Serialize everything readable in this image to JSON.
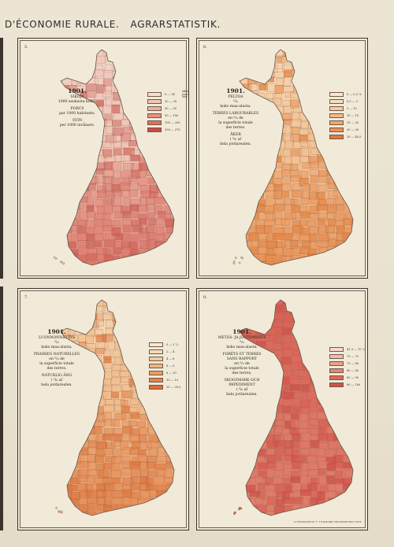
{
  "header": {
    "title_left": "D'ÉCONOMIE RURALE.",
    "title_right": "AGRARSTATISTIK."
  },
  "panels": [
    {
      "number": "5.",
      "caption": [
        "SIKOJA",
        "1000 asukasta kohti.",
        "",
        "PORCS",
        "par 1000 habitants.",
        "",
        "SVIN",
        "per 1000 invånare."
      ],
      "year": "1901.",
      "legend_unit": [
        "äiken",
        "porcs",
        "svin"
      ],
      "legend": [
        {
          "label": "0 — 14",
          "color": "#f6ddd0"
        },
        {
          "label": "20 — 30",
          "color": "#f2c6b6"
        },
        {
          "label": "30 — 50",
          "color": "#eeb09f"
        },
        {
          "label": "50 — 100",
          "color": "#e7917f"
        },
        {
          "label": "100 — 200",
          "color": "#df6f61"
        },
        {
          "label": "200 — 270",
          "color": "#c94b47"
        }
      ],
      "map": {
        "north": "#f3dcd0",
        "mid": "#efc2b3",
        "south": "#e07d70",
        "accent": "#cf5d55"
      }
    },
    {
      "number": "6.",
      "caption": [
        "PELTOA",
        "⁰/₀",
        "koko maa-alasta.",
        "",
        "TERRES LABOURABLES",
        "en ⁰/₀ de",
        "la superficie totale",
        "des terres.",
        "",
        "ÅKER",
        "i ⁰/₀ af",
        "hela jordarealen."
      ],
      "year": "1901.",
      "legend_unit": [],
      "legend": [
        {
          "label": "0 — 0,5 ⁰/₀",
          "color": "#fbe6cc"
        },
        {
          "label": "0,5 — 2",
          "color": "#f9dcb9"
        },
        {
          "label": "2 — 10",
          "color": "#f6cca0"
        },
        {
          "label": "10 — 15",
          "color": "#f3bb85"
        },
        {
          "label": "15 — 20",
          "color": "#f0a66c"
        },
        {
          "label": "20 — 30",
          "color": "#ec9055"
        },
        {
          "label": "30 — 40,5",
          "color": "#e5773e"
        }
      ],
      "map": {
        "north": "#f9e2c6",
        "mid": "#f3c192",
        "south": "#eb9a62",
        "accent": "#e2813f"
      }
    },
    {
      "number": "7.",
      "caption": [
        "LUONNONNIITTYÄ",
        "⁰/₀",
        "koko maa-alasta.",
        "",
        "PRAIRIES NATURELLES",
        "en ⁰/₀ de",
        "la superficie totale",
        "des terres.",
        "",
        "NATURLIG ÄNG",
        "i ⁰/₀ af",
        "hela jordarealen."
      ],
      "year": "1901.",
      "legend_unit": [],
      "legend": [
        {
          "label": "0 — 2 ⁰/₀",
          "color": "#fbe8cf"
        },
        {
          "label": "2 — 4",
          "color": "#f8dab5"
        },
        {
          "label": "4 — 6",
          "color": "#f5c99b"
        },
        {
          "label": "6 — 8",
          "color": "#f1b47f"
        },
        {
          "label": "8 — 10",
          "color": "#ec9c62"
        },
        {
          "label": "10 — 15",
          "color": "#e6844a"
        },
        {
          "label": "15 — 20,5",
          "color": "#dd6c36"
        }
      ],
      "map": {
        "north": "#f7dfc2",
        "mid": "#f1bc8b",
        "south": "#e8905a",
        "accent": "#dc7238"
      }
    },
    {
      "number": "8.",
      "caption": [
        "METSÄ- JA JOUTOMAATA",
        "⁰/₀",
        "koko maa-alasta.",
        "",
        "FORÊTS ET TERRES",
        "SANS RAPPORT",
        "en ⁰/₀ de",
        "la superficie totale",
        "des terres.",
        "",
        "SKOGSMARK OCH",
        "IMPEDIMENT",
        "i ⁰/₀ af",
        "hela jordarealen."
      ],
      "year": "1901.",
      "legend_unit": [],
      "legend": [
        {
          "label": "41,3 — 70 ⁰/₀",
          "color": "#f8d8cb"
        },
        {
          "label": "70 — 75",
          "color": "#f2bcaa"
        },
        {
          "label": "75 — 80",
          "color": "#eca08e"
        },
        {
          "label": "80 — 85",
          "color": "#e48473"
        },
        {
          "label": "85 — 90",
          "color": "#db6a5c"
        },
        {
          "label": "90 — 100",
          "color": "#d0514a"
        }
      ],
      "map": {
        "north": "#d85a50",
        "mid": "#dd6e5f",
        "south": "#e07e6c",
        "accent": "#cf4e46"
      }
    }
  ],
  "imprint": "LITHOGRAPHIC F. TILGMANN HELSINGFORS 1905."
}
